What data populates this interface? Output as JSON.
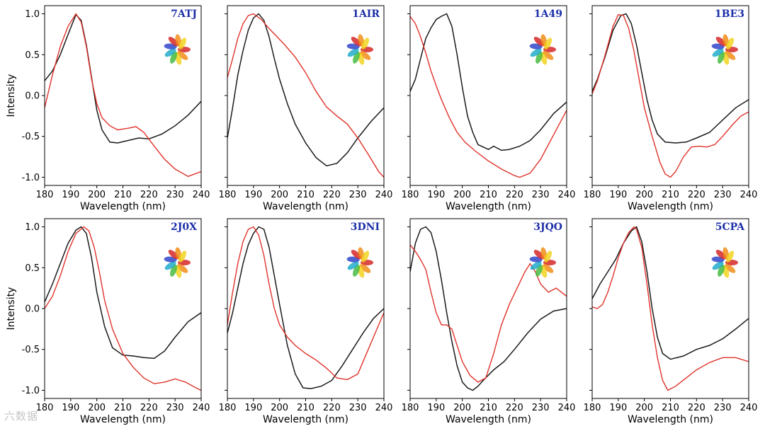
{
  "chart_data": {
    "type": "line",
    "xlabel": "Wavelength (nm)",
    "ylabel": "Intensity",
    "xlim": [
      180,
      240
    ],
    "ylim": [
      -1.1,
      1.1
    ],
    "xticks": [
      180,
      190,
      200,
      210,
      220,
      230,
      240
    ],
    "yticks": [
      -1.0,
      -0.5,
      0.0,
      0.5,
      1.0
    ],
    "ytick_labels": [
      "-1.0",
      "-0.5",
      "0.0",
      "0.5",
      "1.0"
    ],
    "panels": [
      {
        "title": "7ATJ",
        "series": [
          {
            "name": "black",
            "color": "#1a1a1a",
            "x": [
              180,
              183,
              186,
              189,
              192,
              194,
              196,
              198,
              200,
              202,
              205,
              208,
              212,
              216,
              220,
              225,
              230,
              235,
              240
            ],
            "y": [
              0.18,
              0.3,
              0.5,
              0.75,
              0.99,
              0.92,
              0.62,
              0.22,
              -0.18,
              -0.42,
              -0.57,
              -0.58,
              -0.55,
              -0.52,
              -0.53,
              -0.47,
              -0.37,
              -0.24,
              -0.07
            ]
          },
          {
            "name": "red",
            "color": "#e0322a",
            "x": [
              180,
              183,
              186,
              189,
              192,
              194,
              196,
              198,
              200,
              202,
              205,
              208,
              212,
              215,
              218,
              222,
              226,
              230,
              235,
              240
            ],
            "y": [
              -0.15,
              0.25,
              0.6,
              0.85,
              1.0,
              0.9,
              0.6,
              0.2,
              -0.1,
              -0.27,
              -0.37,
              -0.42,
              -0.4,
              -0.38,
              -0.45,
              -0.62,
              -0.78,
              -0.9,
              -0.99,
              -0.93
            ]
          }
        ]
      },
      {
        "title": "1AIR",
        "series": [
          {
            "name": "black",
            "color": "#1a1a1a",
            "x": [
              180,
              182,
              184,
              186,
              188,
              190,
              192,
              194,
              196,
              198,
              200,
              203,
              206,
              210,
              214,
              218,
              222,
              226,
              230,
              235,
              240
            ],
            "y": [
              -0.52,
              -0.15,
              0.25,
              0.55,
              0.8,
              0.95,
              1.0,
              0.92,
              0.72,
              0.45,
              0.2,
              -0.1,
              -0.35,
              -0.58,
              -0.76,
              -0.86,
              -0.83,
              -0.7,
              -0.52,
              -0.32,
              -0.15
            ]
          },
          {
            "name": "red",
            "color": "#e0322a",
            "x": [
              180,
              182,
              184,
              186,
              188,
              190,
              193,
              196,
              199,
              202,
              206,
              210,
              214,
              218,
              222,
              226,
              230,
              234,
              238,
              240
            ],
            "y": [
              0.22,
              0.45,
              0.7,
              0.88,
              0.98,
              1.0,
              0.93,
              0.82,
              0.72,
              0.62,
              0.47,
              0.28,
              0.05,
              -0.14,
              -0.25,
              -0.35,
              -0.52,
              -0.72,
              -0.93,
              -1.0
            ]
          }
        ]
      },
      {
        "title": "1A49",
        "series": [
          {
            "name": "black",
            "color": "#1a1a1a",
            "x": [
              180,
              182,
              184,
              186,
              188,
              190,
              192,
              194,
              196,
              198,
              200,
              202,
              204,
              206,
              208,
              210,
              212,
              215,
              218,
              222,
              226,
              230,
              235,
              240
            ],
            "y": [
              0.05,
              0.2,
              0.45,
              0.7,
              0.83,
              0.93,
              0.97,
              1.0,
              0.85,
              0.5,
              0.1,
              -0.25,
              -0.45,
              -0.6,
              -0.63,
              -0.66,
              -0.62,
              -0.67,
              -0.66,
              -0.62,
              -0.55,
              -0.42,
              -0.22,
              -0.08
            ]
          },
          {
            "name": "red",
            "color": "#e0322a",
            "x": [
              180,
              182,
              184,
              186,
              188,
              190,
              192,
              195,
              198,
              201,
              205,
              210,
              215,
              220,
              222,
              226,
              230,
              235,
              240
            ],
            "y": [
              0.97,
              0.88,
              0.72,
              0.52,
              0.3,
              0.12,
              -0.05,
              -0.27,
              -0.45,
              -0.57,
              -0.68,
              -0.8,
              -0.9,
              -0.98,
              -1.0,
              -0.95,
              -0.78,
              -0.48,
              -0.18
            ]
          }
        ]
      },
      {
        "title": "1BE3",
        "series": [
          {
            "name": "black",
            "color": "#1a1a1a",
            "x": [
              180,
              182,
              185,
              188,
              191,
              193,
              195,
              197,
              199,
              201,
              203,
              205,
              208,
              212,
              216,
              220,
              225,
              230,
              235,
              240
            ],
            "y": [
              0.05,
              0.2,
              0.48,
              0.8,
              0.98,
              1.0,
              0.88,
              0.62,
              0.28,
              -0.05,
              -0.3,
              -0.47,
              -0.57,
              -0.58,
              -0.57,
              -0.52,
              -0.45,
              -0.3,
              -0.15,
              -0.05
            ]
          },
          {
            "name": "red",
            "color": "#e0322a",
            "x": [
              180,
              182,
              185,
              188,
              190,
              192,
              194,
              196,
              198,
              200,
              203,
              206,
              208,
              210,
              212,
              215,
              218,
              221,
              224,
              227,
              230,
              234,
              237,
              240
            ],
            "y": [
              0.02,
              0.18,
              0.5,
              0.85,
              0.99,
              0.98,
              0.82,
              0.55,
              0.2,
              -0.15,
              -0.5,
              -0.82,
              -0.96,
              -1.0,
              -0.93,
              -0.75,
              -0.63,
              -0.62,
              -0.63,
              -0.6,
              -0.5,
              -0.35,
              -0.25,
              -0.2
            ]
          }
        ]
      },
      {
        "title": "2J0X",
        "series": [
          {
            "name": "black",
            "color": "#1a1a1a",
            "x": [
              180,
              183,
              186,
              189,
              192,
              194,
              196,
              198,
              200,
              203,
              206,
              210,
              214,
              218,
              222,
              226,
              230,
              235,
              240
            ],
            "y": [
              0.08,
              0.3,
              0.55,
              0.8,
              0.96,
              1.0,
              0.92,
              0.62,
              0.2,
              -0.22,
              -0.48,
              -0.57,
              -0.58,
              -0.6,
              -0.61,
              -0.52,
              -0.35,
              -0.16,
              -0.05
            ]
          },
          {
            "name": "red",
            "color": "#e0322a",
            "x": [
              180,
              183,
              186,
              189,
              192,
              195,
              197,
              199,
              201,
              203,
              206,
              210,
              214,
              218,
              222,
              226,
              230,
              234,
              238,
              240
            ],
            "y": [
              0.0,
              0.15,
              0.4,
              0.7,
              0.92,
              1.0,
              0.95,
              0.75,
              0.45,
              0.1,
              -0.25,
              -0.55,
              -0.72,
              -0.85,
              -0.92,
              -0.9,
              -0.86,
              -0.9,
              -0.97,
              -1.0
            ]
          }
        ]
      },
      {
        "title": "3DNI",
        "series": [
          {
            "name": "black",
            "color": "#1a1a1a",
            "x": [
              180,
              182,
              184,
              186,
              188,
              190,
              192,
              194,
              196,
              198,
              200,
              203,
              206,
              209,
              212,
              216,
              220,
              224,
              228,
              232,
              236,
              240
            ],
            "y": [
              -0.3,
              -0.05,
              0.25,
              0.55,
              0.78,
              0.92,
              1.0,
              0.97,
              0.75,
              0.4,
              0.05,
              -0.45,
              -0.8,
              -0.97,
              -0.98,
              -0.95,
              -0.88,
              -0.7,
              -0.5,
              -0.3,
              -0.12,
              0.0
            ]
          },
          {
            "name": "red",
            "color": "#e0322a",
            "x": [
              180,
              182,
              184,
              186,
              188,
              190,
              192,
              194,
              196,
              198,
              200,
              203,
              206,
              210,
              214,
              218,
              222,
              226,
              230,
              234,
              238,
              240
            ],
            "y": [
              -0.2,
              0.2,
              0.55,
              0.82,
              0.97,
              1.0,
              0.9,
              0.65,
              0.3,
              0.0,
              -0.2,
              -0.35,
              -0.45,
              -0.55,
              -0.63,
              -0.73,
              -0.85,
              -0.87,
              -0.8,
              -0.5,
              -0.2,
              -0.05
            ]
          }
        ]
      },
      {
        "title": "3JQO",
        "series": [
          {
            "name": "black",
            "color": "#1a1a1a",
            "x": [
              180,
              182,
              184,
              186,
              188,
              190,
              192,
              194,
              196,
              198,
              200,
              202,
              204,
              206,
              208,
              212,
              216,
              220,
              225,
              230,
              235,
              240
            ],
            "y": [
              0.45,
              0.8,
              0.97,
              1.0,
              0.93,
              0.7,
              0.35,
              -0.05,
              -0.4,
              -0.7,
              -0.9,
              -0.97,
              -1.0,
              -0.95,
              -0.88,
              -0.75,
              -0.65,
              -0.5,
              -0.3,
              -0.13,
              -0.03,
              0.0
            ]
          },
          {
            "name": "red",
            "color": "#e0322a",
            "x": [
              180,
              182,
              184,
              186,
              188,
              190,
              192,
              194,
              196,
              198,
              200,
              203,
              206,
              209,
              212,
              215,
              218,
              221,
              224,
              226,
              228,
              230,
              233,
              236,
              238,
              240
            ],
            "y": [
              0.78,
              0.7,
              0.6,
              0.48,
              0.2,
              -0.05,
              -0.2,
              -0.2,
              -0.25,
              -0.45,
              -0.65,
              -0.82,
              -0.9,
              -0.85,
              -0.55,
              -0.2,
              0.05,
              0.25,
              0.45,
              0.55,
              0.45,
              0.3,
              0.2,
              0.25,
              0.2,
              0.15
            ]
          }
        ]
      },
      {
        "title": "5CPA",
        "series": [
          {
            "name": "black",
            "color": "#1a1a1a",
            "x": [
              180,
              183,
              186,
              189,
              192,
              195,
              197,
              199,
              201,
              203,
              205,
              207,
              210,
              215,
              220,
              225,
              230,
              235,
              240
            ],
            "y": [
              0.12,
              0.3,
              0.45,
              0.6,
              0.8,
              0.95,
              1.0,
              0.82,
              0.45,
              0.0,
              -0.35,
              -0.55,
              -0.62,
              -0.58,
              -0.5,
              -0.45,
              -0.37,
              -0.25,
              -0.12
            ]
          },
          {
            "name": "red",
            "color": "#e0322a",
            "x": [
              180,
              182,
              184,
              186,
              188,
              190,
              192,
              194,
              196,
              197,
              199,
              201,
              203,
              205,
              207,
              209,
              212,
              216,
              220,
              225,
              230,
              235,
              240
            ],
            "y": [
              0.02,
              0.0,
              0.05,
              0.2,
              0.4,
              0.62,
              0.8,
              0.93,
              1.0,
              0.97,
              0.75,
              0.3,
              -0.2,
              -0.6,
              -0.88,
              -1.0,
              -0.95,
              -0.85,
              -0.75,
              -0.66,
              -0.6,
              -0.6,
              -0.65
            ]
          }
        ]
      }
    ]
  },
  "watermark_text": "六数据"
}
